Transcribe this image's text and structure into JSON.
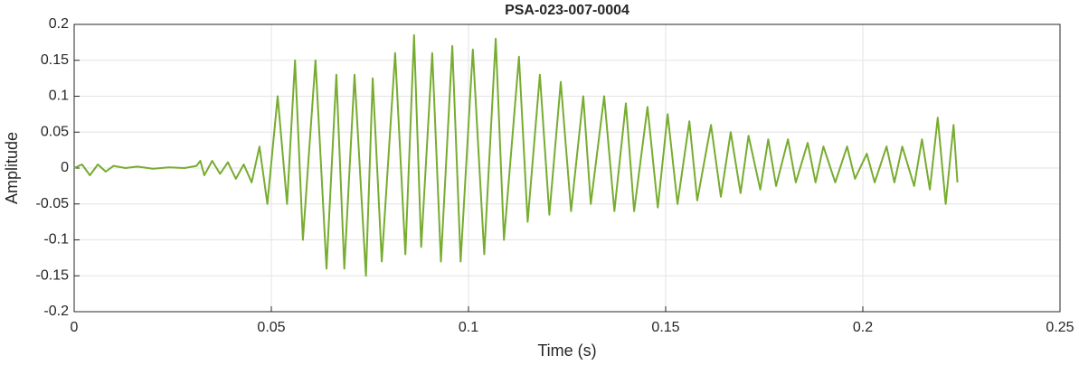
{
  "chart_data": {
    "type": "line",
    "title": "PSA-023-007-0004",
    "xlabel": "Time (s)",
    "ylabel": "Amplitude",
    "xlim": [
      0,
      0.25
    ],
    "xticks": [
      0,
      0.05,
      0.1,
      0.15,
      0.2,
      0.25
    ],
    "ylim": [
      -0.2,
      0.2
    ],
    "yticks": [
      -0.2,
      -0.15,
      -0.1,
      -0.05,
      0,
      0.05,
      0.1,
      0.15,
      0.2
    ],
    "grid": true,
    "x": [
      0,
      0.002,
      0.004,
      0.006,
      0.008,
      0.01,
      0.013,
      0.016,
      0.02,
      0.024,
      0.028,
      0.031,
      0.032,
      0.033,
      0.035,
      0.037,
      0.039,
      0.041,
      0.043,
      0.045,
      0.047,
      0.049,
      0.0516,
      0.054,
      0.056,
      0.058,
      0.0612,
      0.064,
      0.0665,
      0.0685,
      0.0711,
      0.074,
      0.0757,
      0.078,
      0.0814,
      0.084,
      0.0862,
      0.088,
      0.0908,
      0.093,
      0.0959,
      0.098,
      0.1011,
      0.104,
      0.1069,
      0.109,
      0.1128,
      0.115,
      0.1181,
      0.1205,
      0.1234,
      0.126,
      0.1291,
      0.131,
      0.1344,
      0.137,
      0.1399,
      0.142,
      0.1454,
      0.148,
      0.1505,
      0.153,
      0.156,
      0.158,
      0.1615,
      0.164,
      0.1665,
      0.169,
      0.171,
      0.174,
      0.176,
      0.178,
      0.181,
      0.183,
      0.186,
      0.188,
      0.19,
      0.193,
      0.196,
      0.198,
      0.201,
      0.203,
      0.206,
      0.208,
      0.21,
      0.213,
      0.215,
      0.217,
      0.219,
      0.221,
      0.223,
      0.224
    ],
    "series": [
      {
        "name": "PSA-023-007-0004",
        "color": "#77ac30",
        "values": [
          0,
          0.005,
          -0.01,
          0.005,
          -0.005,
          0.003,
          0,
          0.002,
          -0.001,
          0.001,
          0,
          0.003,
          0.01,
          -0.01,
          0.01,
          -0.008,
          0.008,
          -0.015,
          0.005,
          -0.02,
          0.03,
          -0.05,
          0.1,
          -0.05,
          0.15,
          -0.1,
          0.15,
          -0.14,
          0.13,
          -0.14,
          0.13,
          -0.15,
          0.125,
          -0.13,
          0.16,
          -0.12,
          0.185,
          -0.11,
          0.16,
          -0.13,
          0.17,
          -0.13,
          0.165,
          -0.12,
          0.18,
          -0.1,
          0.155,
          -0.075,
          0.13,
          -0.065,
          0.12,
          -0.06,
          0.1,
          -0.05,
          0.1,
          -0.06,
          0.09,
          -0.06,
          0.085,
          -0.055,
          0.075,
          -0.05,
          0.065,
          -0.045,
          0.06,
          -0.04,
          0.05,
          -0.035,
          0.045,
          -0.03,
          0.04,
          -0.025,
          0.04,
          -0.02,
          0.035,
          -0.02,
          0.03,
          -0.02,
          0.03,
          -0.015,
          0.02,
          -0.02,
          0.03,
          -0.02,
          0.03,
          -0.025,
          0.04,
          -0.03,
          0.07,
          -0.05,
          0.06,
          -0.02
        ]
      }
    ]
  }
}
